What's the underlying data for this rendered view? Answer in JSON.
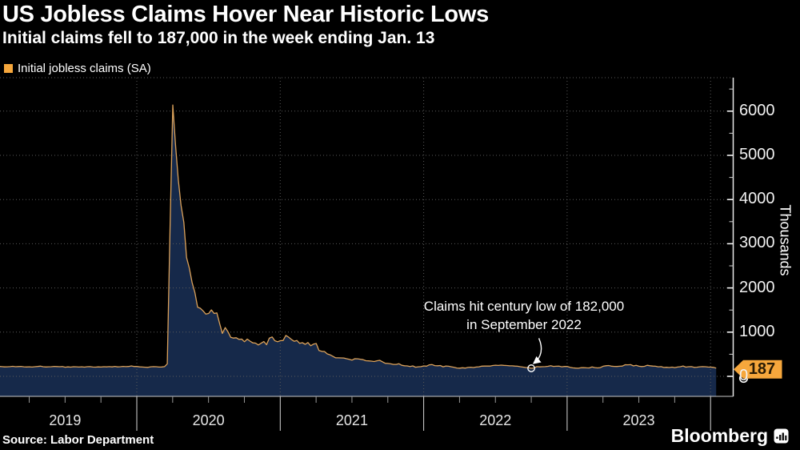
{
  "header": {
    "title": "US Jobless Claims Hover Near Historic Lows",
    "subtitle": "Initial claims fell to 187,000 in the week ending Jan. 13"
  },
  "legend": {
    "label": "Initial jobless claims (SA)",
    "swatch_color": "#F6A73C"
  },
  "annotation": {
    "line1": "Claims hit century low of 182,000",
    "line2": "in September 2022"
  },
  "badge": {
    "label": "187",
    "color": "#F6A73C",
    "text_color": "#2a1c05"
  },
  "footer": {
    "source": "Source: Labor Department",
    "brand": "Bloomberg"
  },
  "colors": {
    "background": "#000000",
    "line": "#DCA25A",
    "area_fill": "#16294A",
    "grid": "#5a5a5a",
    "axis": "#e8e8e8",
    "text": "#ffffff",
    "accent_orange": "#F6A73C"
  },
  "chart_data": {
    "type": "area",
    "title": "US Jobless Claims Hover Near Historic Lows",
    "subtitle": "Initial claims fell to 187,000 in the week ending Jan. 13",
    "series_name": "Initial jobless claims (SA)",
    "unit_label": "Thousands",
    "ylabel": "Thousands",
    "xlabel": "",
    "grid": "dotted",
    "legend_position": "top-left",
    "ylim": [
      -450,
      6750
    ],
    "y_ticks": [
      0,
      1000,
      2000,
      3000,
      4000,
      5000,
      6000
    ],
    "y_minor_ticks": [
      500,
      1500,
      2500,
      3500,
      4500,
      5500,
      6500
    ],
    "x_tick_years": [
      2020,
      2021,
      2022,
      2023,
      2024
    ],
    "x_year_labels": [
      "2019",
      "2020",
      "2021",
      "2022",
      "2023"
    ],
    "x_year_label_centers": [
      2019.5,
      2020.5,
      2021.5,
      2022.5,
      2023.5
    ],
    "x_start": 2019.02,
    "x_step_years": 0.019231,
    "frequency": "weekly",
    "annotation_point": {
      "t": 2022.75,
      "v": 182
    },
    "last_value": 187,
    "peak_value": 6137,
    "values": [
      231,
      225,
      220,
      213,
      216,
      220,
      226,
      217,
      221,
      225,
      216,
      212,
      215,
      211,
      218,
      222,
      230,
      218,
      212,
      216,
      218,
      224,
      221,
      217,
      221,
      207,
      214,
      209,
      217,
      215,
      211,
      216,
      208,
      217,
      219,
      210,
      208,
      213,
      210,
      218,
      214,
      220,
      213,
      224,
      213,
      218,
      224,
      220,
      222,
      235,
      223,
      222,
      214,
      211,
      206,
      202,
      215,
      220,
      217,
      211,
      212,
      220,
      282,
      3307,
      6137,
      5237,
      4442,
      3867,
      3484,
      2687,
      2446,
      2123,
      1897,
      1566,
      1540,
      1480,
      1408,
      1422,
      1503,
      1422,
      1435,
      1191,
      971,
      1104,
      1011,
      884,
      866,
      873,
      837,
      842,
      782,
      842,
      797,
      758,
      751,
      711,
      748,
      787,
      716,
      862,
      892,
      806,
      782,
      806,
      812,
      926,
      886,
      836,
      793,
      812,
      746,
      761,
      725,
      765,
      692,
      729,
      742,
      586,
      566,
      561,
      507,
      487,
      455,
      420,
      418,
      417,
      415,
      398,
      386,
      368,
      399,
      396,
      387,
      377,
      354,
      349,
      345,
      335,
      351,
      362,
      329,
      296,
      291,
      283,
      270,
      270,
      285,
      250,
      239,
      236,
      222,
      235,
      206,
      216,
      220,
      235,
      230,
      261,
      267,
      242,
      239,
      245,
      215,
      233,
      229,
      215,
      202,
      188,
      185,
      193,
      186,
      201,
      207,
      199,
      211,
      216,
      230,
      232,
      233,
      232,
      244,
      251,
      246,
      254,
      248,
      245,
      240,
      237,
      232,
      228,
      218,
      209,
      200,
      193,
      182,
      190,
      219,
      214,
      217,
      220,
      226,
      241,
      225,
      229,
      230,
      216,
      223,
      225,
      205,
      192,
      186,
      183,
      195,
      195,
      192,
      190,
      212,
      198,
      191,
      198,
      228,
      240,
      245,
      230,
      225,
      222,
      229,
      232,
      262,
      261,
      264,
      236,
      248,
      228,
      221,
      227,
      250,
      240,
      232,
      228,
      216,
      220,
      201,
      204,
      200,
      209,
      198,
      210,
      217,
      233,
      208,
      218,
      220,
      202,
      206,
      215,
      220,
      218,
      211,
      208,
      202,
      187
    ]
  }
}
